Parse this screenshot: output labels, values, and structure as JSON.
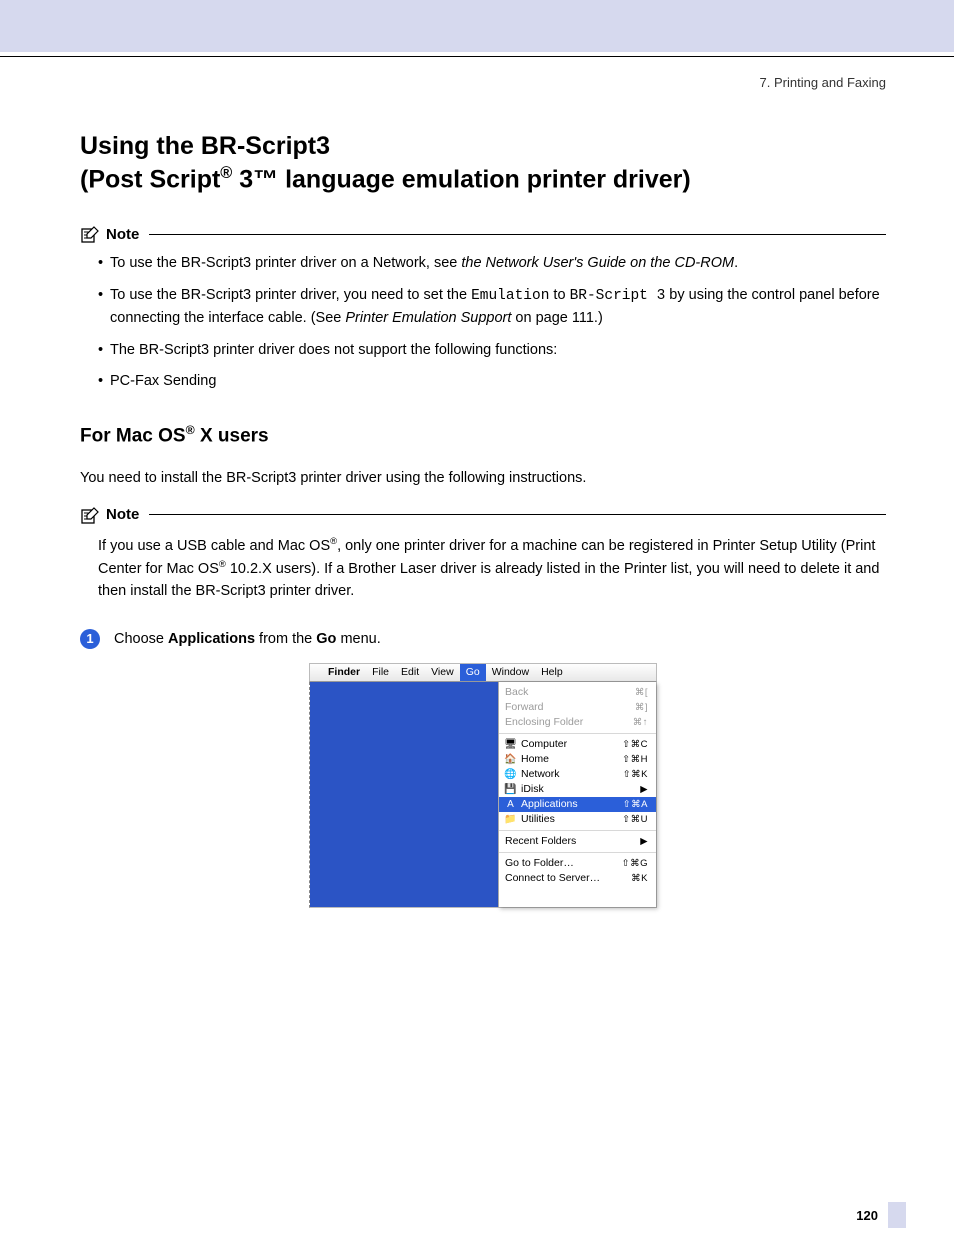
{
  "breadcrumb": "7. Printing and Faxing",
  "h1_line1": "Using the BR-Script3",
  "h1_line2a": "(Post Script",
  "h1_line2b": " 3™ language emulation printer driver)",
  "note_label": "Note",
  "note1": {
    "b1a": "To use the BR-Script3 printer driver on a Network, see ",
    "b1i": "the Network User's Guide on the CD-ROM",
    "b1b": ".",
    "b2a": "To use the BR-Script3 printer driver, you need to set the ",
    "b2m1": "Emulation",
    "b2b": " to ",
    "b2m2": "BR-Script 3",
    "b2c": " by using the control panel before connecting the interface cable. (See ",
    "b2i": "Printer Emulation Support",
    "b2d": " on page 111.)",
    "b3": "The BR-Script3 printer driver does not support the following functions:",
    "b4": "PC-Fax Sending"
  },
  "h2a": "For Mac OS",
  "h2b": " X users",
  "intro": "You need to install the BR-Script3 printer driver using the following instructions.",
  "note2a": "If you use a USB cable and Mac OS",
  "note2b": ", only one printer driver for a machine can be registered in Printer Setup Utility (Print Center for Mac OS",
  "note2c": " 10.2.X users). If a Brother Laser driver is already listed in the Printer list, you will need to delete it and then install the BR-Script3 printer driver.",
  "step1_num": "1",
  "step1a": "Choose ",
  "step1b": "Applications",
  "step1c": " from the ",
  "step1d": "Go",
  "step1e": " menu.",
  "menubar": {
    "finder": "Finder",
    "items": [
      "File",
      "Edit",
      "View",
      "Go",
      "Window",
      "Help"
    ]
  },
  "menu": [
    {
      "label": "Back",
      "sc": "⌘[",
      "disabled": true
    },
    {
      "label": "Forward",
      "sc": "⌘]",
      "disabled": true
    },
    {
      "label": "Enclosing Folder",
      "sc": "⌘↑",
      "disabled": true
    },
    {
      "sep": true
    },
    {
      "label": "Computer",
      "sc": "⇧⌘C",
      "icon": "🖥"
    },
    {
      "label": "Home",
      "sc": "⇧⌘H",
      "icon": "🏠"
    },
    {
      "label": "Network",
      "sc": "⇧⌘K",
      "icon": "🌐"
    },
    {
      "label": "iDisk",
      "sc": "▶",
      "icon": "💾"
    },
    {
      "label": "Applications",
      "sc": "⇧⌘A",
      "icon": "A",
      "selected": true
    },
    {
      "label": "Utilities",
      "sc": "⇧⌘U",
      "icon": "📁"
    },
    {
      "sep": true
    },
    {
      "label": "Recent Folders",
      "sc": "▶"
    },
    {
      "sep": true
    },
    {
      "label": "Go to Folder…",
      "sc": "⇧⌘G"
    },
    {
      "label": "Connect to Server…",
      "sc": "⌘K"
    }
  ],
  "pagenum": "120"
}
